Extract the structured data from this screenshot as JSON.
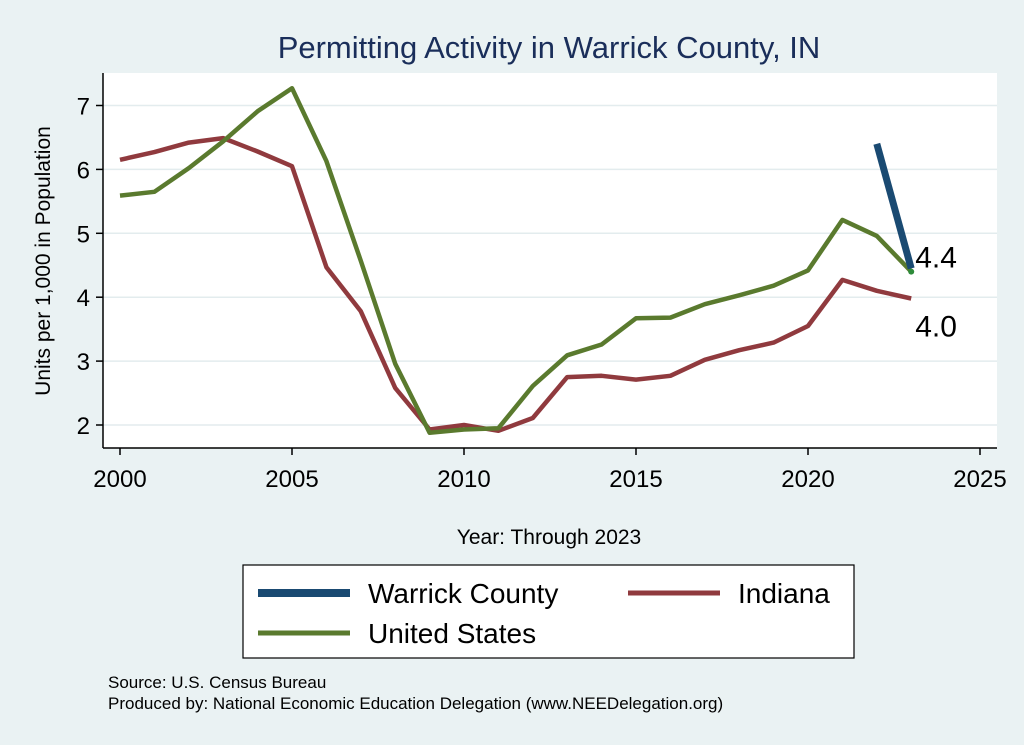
{
  "chart_data": {
    "type": "line",
    "title": "Permitting Activity in Warrick County, IN",
    "xlabel": "Year: Through 2023",
    "ylabel": "Units per 1,000 in Population",
    "xlim": [
      2000,
      2025
    ],
    "ylim": [
      1.6,
      7.5
    ],
    "x_ticks": [
      2000,
      2005,
      2010,
      2015,
      2020,
      2025
    ],
    "y_ticks": [
      2,
      3,
      4,
      5,
      6,
      7
    ],
    "grid": true,
    "legend_position": "bottom",
    "series": [
      {
        "name": "Warrick County",
        "color": "#1a4a72",
        "x": [
          2022,
          2023
        ],
        "values": [
          6.4,
          4.45
        ]
      },
      {
        "name": "Indiana",
        "color": "#903a3e",
        "x": [
          2000,
          2001,
          2002,
          2003,
          2004,
          2005,
          2006,
          2007,
          2008,
          2009,
          2010,
          2011,
          2012,
          2013,
          2014,
          2015,
          2016,
          2017,
          2018,
          2019,
          2020,
          2021,
          2022,
          2023
        ],
        "values": [
          6.15,
          6.27,
          6.42,
          6.49,
          6.28,
          6.05,
          4.47,
          3.78,
          2.58,
          1.93,
          2.0,
          1.91,
          2.11,
          2.75,
          2.77,
          2.71,
          2.77,
          3.02,
          3.17,
          3.29,
          3.55,
          4.27,
          4.1,
          3.98
        ]
      },
      {
        "name": "United States",
        "color": "#5a7a2e",
        "x": [
          2000,
          2001,
          2002,
          2003,
          2004,
          2005,
          2006,
          2007,
          2008,
          2009,
          2010,
          2011,
          2012,
          2013,
          2014,
          2015,
          2016,
          2017,
          2018,
          2019,
          2020,
          2021,
          2022,
          2023
        ],
        "values": [
          5.59,
          5.65,
          6.02,
          6.44,
          6.91,
          7.27,
          6.13,
          4.57,
          2.96,
          1.88,
          1.93,
          1.95,
          2.61,
          3.09,
          3.26,
          3.67,
          3.68,
          3.89,
          4.03,
          4.18,
          4.42,
          5.21,
          4.96,
          4.4
        ]
      }
    ],
    "end_labels": [
      {
        "series": "United States",
        "text": "4.4"
      },
      {
        "series": "Indiana",
        "text": "4.0"
      }
    ]
  },
  "notes": {
    "source": "Source: U.S. Census Bureau",
    "produced_by": "Produced by: National Economic Education Delegation (www.NEEDelegation.org)"
  }
}
